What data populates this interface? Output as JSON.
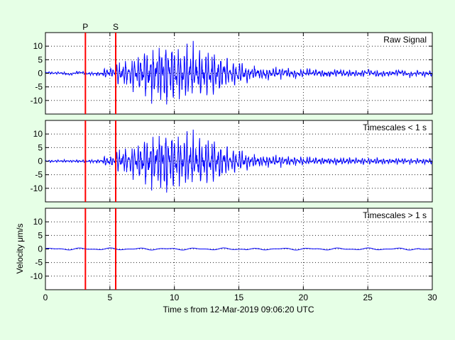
{
  "chart_data": {
    "type": "line",
    "x_range": [
      0,
      30
    ],
    "x_ticks": [
      0,
      5,
      10,
      15,
      20,
      25,
      30
    ],
    "y_range": [
      -15,
      15
    ],
    "y_ticks": [
      10,
      5,
      0,
      -5,
      -10
    ],
    "xlabel": "Time s from 12-Mar-2019 09:06:20 UTC",
    "ylabel": "Velocity μm/s",
    "grid": true,
    "markers": [
      {
        "label": "P",
        "time": 3.1,
        "color": "#ff0000"
      },
      {
        "label": "S",
        "time": 5.45,
        "color": "#ff0000"
      }
    ],
    "panels": [
      {
        "name": "raw",
        "title": "Raw Signal",
        "kind": "raw"
      },
      {
        "name": "short",
        "title": "Timescales < 1 s",
        "kind": "short"
      },
      {
        "name": "long",
        "title": "Timescales > 1 s",
        "kind": "long"
      }
    ],
    "series_color": "#0000ff",
    "envelope": [
      [
        0,
        0.5
      ],
      [
        3,
        0.6
      ],
      [
        4.4,
        0.8
      ],
      [
        4.5,
        2.0
      ],
      [
        5.4,
        2.4
      ],
      [
        5.5,
        4
      ],
      [
        6.5,
        6
      ],
      [
        7.3,
        9
      ],
      [
        8.2,
        13
      ],
      [
        9.2,
        15
      ],
      [
        10,
        12
      ],
      [
        11.5,
        11
      ],
      [
        12.5,
        9
      ],
      [
        13.5,
        7
      ],
      [
        15,
        5
      ],
      [
        16,
        3
      ],
      [
        18,
        2.5
      ],
      [
        20,
        1.8
      ],
      [
        23,
        1.5
      ],
      [
        26,
        1.3
      ],
      [
        30,
        1.2
      ]
    ]
  }
}
